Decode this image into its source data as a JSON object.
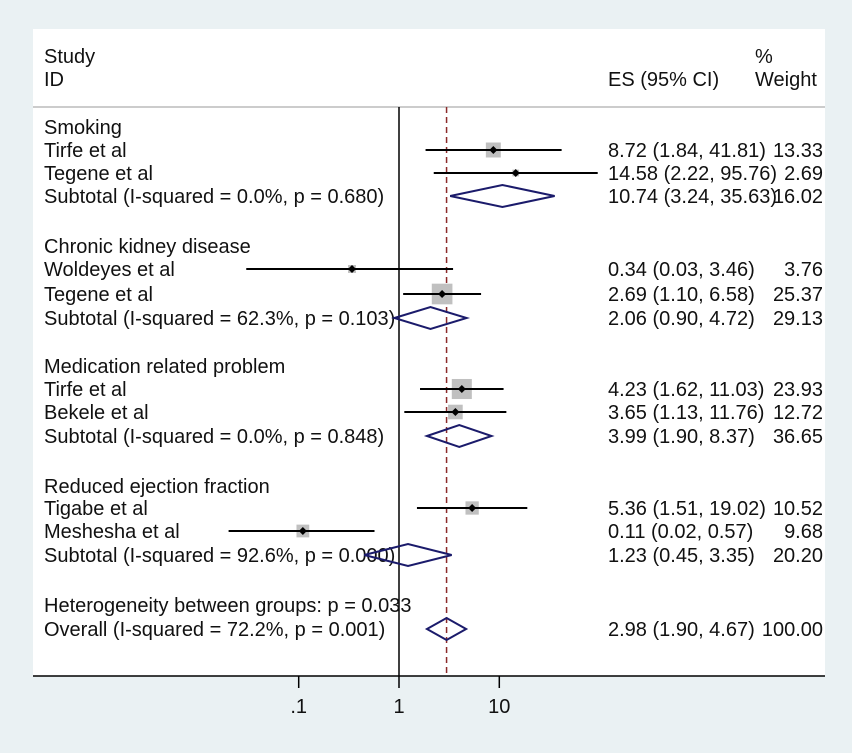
{
  "chart_data": {
    "type": "forest",
    "scale": "log",
    "xticks": [
      0.1,
      1,
      10
    ],
    "xtick_labels": [
      ".1",
      "1",
      "10"
    ],
    "null_line": 1,
    "overall_line": 2.98,
    "headers": {
      "study_1": "Study",
      "study_2": "ID",
      "es": "ES (95% CI)",
      "weight_1": "%",
      "weight_2": "Weight"
    },
    "colors": {
      "ci": "#000000",
      "box": "#c0c0c0",
      "diamond": "#1b1b6b",
      "overall_line": "#8b2a2a",
      "background": "#eaf1f3"
    },
    "rows": [
      {
        "kind": "group",
        "label": "Smoking"
      },
      {
        "kind": "study",
        "label": "Tirfe et al",
        "es": 8.72,
        "lo": 1.84,
        "hi": 41.81,
        "weight": 13.33,
        "es_text": "8.72 (1.84, 41.81)",
        "weight_text": "13.33"
      },
      {
        "kind": "study",
        "label": "Tegene et al",
        "es": 14.58,
        "lo": 2.22,
        "hi": 95.76,
        "weight": 2.69,
        "es_text": "14.58 (2.22, 95.76)",
        "weight_text": "2.69"
      },
      {
        "kind": "subtotal",
        "label": "Subtotal  (I-squared = 0.0%, p = 0.680)",
        "es": 10.74,
        "lo": 3.24,
        "hi": 35.63,
        "weight": 16.02,
        "es_text": "10.74 (3.24, 35.63)",
        "weight_text": "16.02"
      },
      {
        "kind": "group",
        "label": "Chronic kidney disease"
      },
      {
        "kind": "study",
        "label": "Woldeyes et al",
        "es": 0.34,
        "lo": 0.03,
        "hi": 3.46,
        "weight": 3.76,
        "es_text": "0.34 (0.03, 3.46)",
        "weight_text": "3.76"
      },
      {
        "kind": "study",
        "label": "Tegene et al",
        "es": 2.69,
        "lo": 1.1,
        "hi": 6.58,
        "weight": 25.37,
        "es_text": "2.69 (1.10, 6.58)",
        "weight_text": "25.37"
      },
      {
        "kind": "subtotal",
        "label": "Subtotal  (I-squared = 62.3%, p = 0.103)",
        "es": 2.06,
        "lo": 0.9,
        "hi": 4.72,
        "weight": 29.13,
        "es_text": "2.06 (0.90, 4.72)",
        "weight_text": "29.13"
      },
      {
        "kind": "group",
        "label": "Medication related problem"
      },
      {
        "kind": "study",
        "label": "Tirfe et al",
        "es": 4.23,
        "lo": 1.62,
        "hi": 11.03,
        "weight": 23.93,
        "es_text": "4.23 (1.62, 11.03)",
        "weight_text": "23.93"
      },
      {
        "kind": "study",
        "label": "Bekele et al",
        "es": 3.65,
        "lo": 1.13,
        "hi": 11.76,
        "weight": 12.72,
        "es_text": "3.65 (1.13, 11.76)",
        "weight_text": "12.72"
      },
      {
        "kind": "subtotal",
        "label": "Subtotal  (I-squared = 0.0%, p = 0.848)",
        "es": 3.99,
        "lo": 1.9,
        "hi": 8.37,
        "weight": 36.65,
        "es_text": "3.99 (1.90, 8.37)",
        "weight_text": "36.65"
      },
      {
        "kind": "group",
        "label": "Reduced ejection fraction"
      },
      {
        "kind": "study",
        "label": "Tigabe et al",
        "es": 5.36,
        "lo": 1.51,
        "hi": 19.02,
        "weight": 10.52,
        "es_text": "5.36 (1.51, 19.02)",
        "weight_text": "10.52"
      },
      {
        "kind": "study",
        "label": "Meshesha et al",
        "es": 0.11,
        "lo": 0.02,
        "hi": 0.57,
        "weight": 9.68,
        "es_text": "0.11 (0.02, 0.57)",
        "weight_text": "9.68"
      },
      {
        "kind": "subtotal",
        "label": "Subtotal  (I-squared = 92.6%, p = 0.000)",
        "es": 1.23,
        "lo": 0.45,
        "hi": 3.35,
        "weight": 20.2,
        "es_text": "1.23 (0.45, 3.35)",
        "weight_text": "20.20"
      },
      {
        "kind": "note",
        "label": "Heterogeneity between groups: p = 0.033"
      },
      {
        "kind": "subtotal",
        "label": "Overall  (I-squared = 72.2%, p = 0.001)",
        "es": 2.98,
        "lo": 1.9,
        "hi": 4.67,
        "weight": 100.0,
        "es_text": "2.98 (1.90, 4.67)",
        "weight_text": "100.00"
      }
    ]
  }
}
